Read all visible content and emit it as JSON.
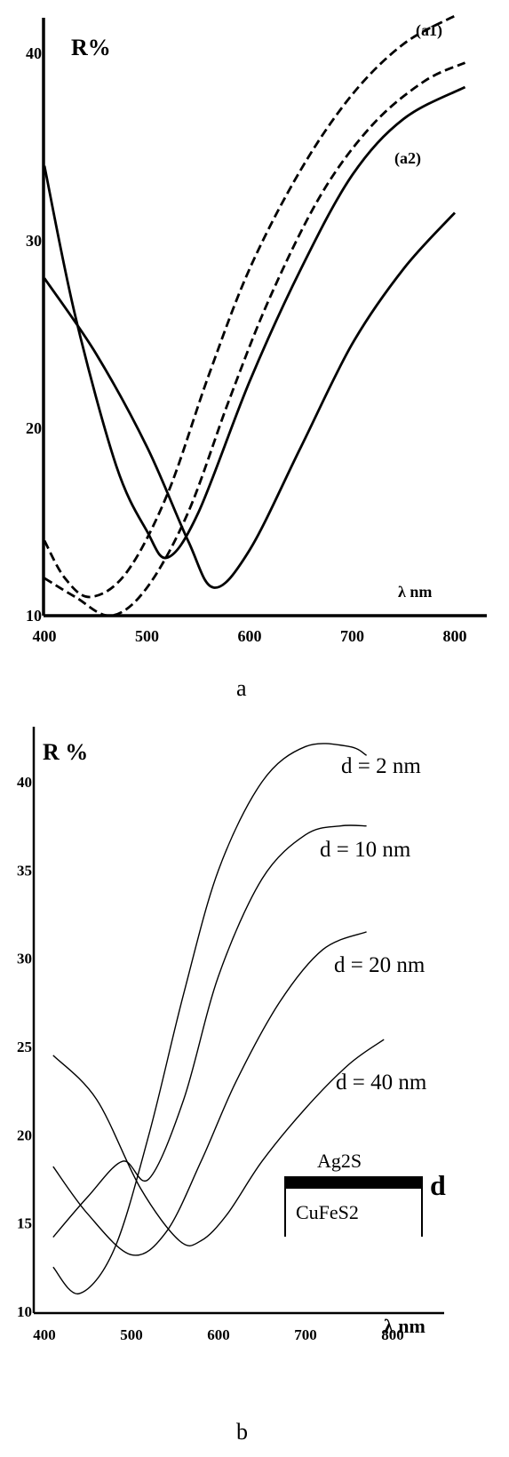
{
  "chart_data": [
    {
      "type": "line",
      "panel": "a",
      "ylabel": "R%",
      "xlabel": "λ nm",
      "x_unit": "nm",
      "xlim": [
        400,
        800
      ],
      "ylim": [
        10,
        40
      ],
      "x_ticks": [
        400,
        500,
        600,
        700,
        800
      ],
      "x_tick_labels": [
        "400",
        "500",
        "600",
        "700",
        "800"
      ],
      "y_ticks": [
        10,
        20,
        30,
        40
      ],
      "y_tick_labels": [
        "10",
        "20",
        "30",
        "40"
      ],
      "series": [
        {
          "name": "(a1)",
          "style": "dashed",
          "x": [
            400,
            420,
            445,
            480,
            520,
            560,
            600,
            650,
            700,
            750,
            800
          ],
          "y": [
            14,
            12,
            11,
            12.3,
            16.5,
            22.8,
            28.5,
            33.8,
            37.8,
            40.5,
            42
          ]
        },
        {
          "style": "dashed",
          "x": [
            400,
            430,
            465,
            500,
            540,
            580,
            620,
            670,
            720,
            770,
            810
          ],
          "y": [
            12,
            11,
            10,
            11.5,
            15.5,
            21.5,
            27,
            32.5,
            36.2,
            38.5,
            39.5
          ]
        },
        {
          "style": "solid",
          "x": [
            400,
            430,
            470,
            500,
            520,
            550,
            600,
            650,
            700,
            750,
            810
          ],
          "y": [
            34,
            26,
            18,
            14.5,
            13.1,
            15.5,
            22.5,
            28.5,
            33.5,
            36.5,
            38.2
          ]
        },
        {
          "name": "(a2)",
          "style": "solid",
          "x": [
            400,
            450,
            500,
            540,
            565,
            600,
            650,
            700,
            750,
            800
          ],
          "y": [
            28,
            24,
            19,
            14,
            11.5,
            13.5,
            19,
            24.5,
            28.5,
            31.5
          ]
        }
      ]
    },
    {
      "type": "line",
      "panel": "b",
      "ylabel": "R %",
      "xlabel": "λ nm",
      "x_unit": "nm",
      "xlim": [
        400,
        800
      ],
      "ylim": [
        10,
        40
      ],
      "x_ticks": [
        400,
        500,
        600,
        700,
        800
      ],
      "x_tick_labels": [
        "400",
        "500",
        "600",
        "700",
        "800"
      ],
      "y_ticks": [
        10,
        15,
        20,
        25,
        30,
        35,
        40
      ],
      "y_tick_labels": [
        "10",
        "15",
        "20",
        "25",
        "30",
        "35",
        "40"
      ],
      "series": [
        {
          "name": "d = 2 nm",
          "x": [
            410,
            440,
            480,
            520,
            560,
            600,
            650,
            700,
            750,
            770
          ],
          "y": [
            12.5,
            11,
            13.5,
            20,
            28,
            35,
            40,
            42,
            42,
            41.5
          ]
        },
        {
          "name": "d = 10 nm",
          "x": [
            410,
            450,
            490,
            520,
            560,
            600,
            650,
            700,
            740,
            770
          ],
          "y": [
            14.2,
            16.5,
            18.5,
            17.5,
            22,
            29,
            34.5,
            37,
            37.5,
            37.5
          ]
        },
        {
          "name": "d = 20 nm",
          "x": [
            410,
            450,
            500,
            540,
            580,
            620,
            670,
            720,
            770
          ],
          "y": [
            18.2,
            15.5,
            13.2,
            14.5,
            18.5,
            23,
            27.5,
            30.5,
            31.5
          ]
        },
        {
          "name": "d = 40 nm",
          "x": [
            410,
            460,
            510,
            555,
            580,
            610,
            650,
            700,
            750,
            790
          ],
          "y": [
            24.5,
            22,
            17,
            14,
            14,
            15.5,
            18.5,
            21.5,
            24,
            25.4
          ]
        }
      ],
      "inset": {
        "top_layer": "Ag2S",
        "substrate": "CuFeS2",
        "thickness_label": "d"
      }
    }
  ],
  "panel_labels": [
    "a",
    "b"
  ]
}
